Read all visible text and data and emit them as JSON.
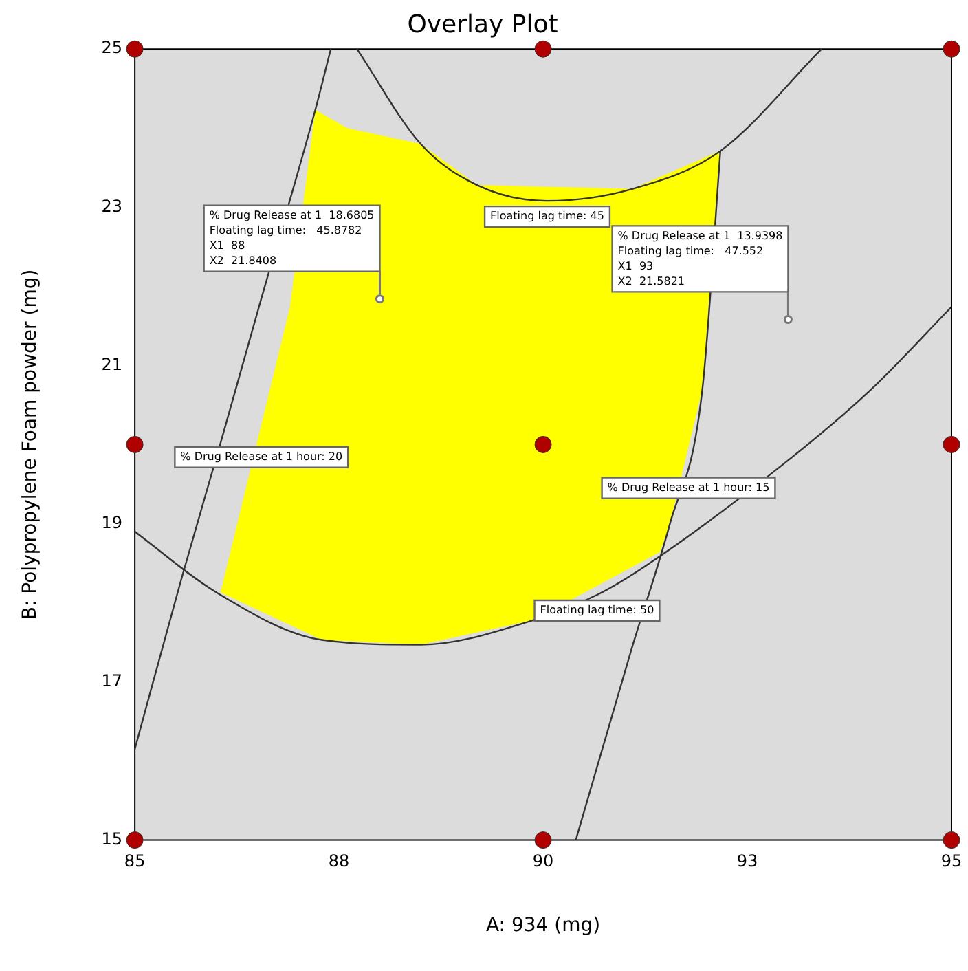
{
  "chart_data": {
    "type": "scatter",
    "title": "Overlay Plot",
    "xlabel": "A: 934 (mg)",
    "ylabel": "B: Polypropylene Foam powder (mg)",
    "xlim": [
      85,
      95
    ],
    "ylim": [
      15,
      25
    ],
    "xticks": [
      85,
      {
        "value": 87.5,
        "label": "88"
      },
      90,
      {
        "value": 92.5,
        "label": "93"
      },
      95
    ],
    "yticks": [
      15,
      17,
      19,
      21,
      23,
      25
    ],
    "grid": false,
    "legend": false,
    "series": [
      {
        "type": "area",
        "color": "#ffff00",
        "x": [
          86.05,
          86.9,
          87.21,
          87.6,
          88.5,
          89.19,
          91.09,
          92.17,
          91.95,
          91.55,
          91.43,
          89.88,
          88.5,
          87.29,
          86.05
        ],
        "values": [
          18.13,
          21.74,
          24.23,
          24.0,
          23.8,
          23.28,
          23.23,
          23.71,
          20.7,
          18.99,
          18.64,
          17.78,
          17.47,
          17.53,
          18.13
        ]
      },
      {
        "type": "line",
        "color": "#333333",
        "x": [
          85,
          85.57,
          86.05,
          86.52,
          87.21,
          87.4
        ],
        "values": [
          16.15,
          18.3,
          20.02,
          21.74,
          24.23,
          25
        ]
      },
      {
        "type": "line",
        "color": "#333333",
        "x": [
          90.4,
          91.09,
          91.55,
          91.95,
          92.17
        ],
        "values": [
          15,
          17.44,
          18.99,
          20.7,
          23.71
        ]
      },
      {
        "type": "line",
        "color": "#333333",
        "x": [
          87.72,
          88.5,
          89.19,
          90.05,
          91.09,
          92.17,
          93.41
        ],
        "values": [
          25,
          23.8,
          23.28,
          23.08,
          23.23,
          23.71,
          25
        ]
      },
      {
        "type": "line",
        "color": "#333333",
        "x": [
          85,
          86,
          87.29,
          88.5,
          89.88,
          90.66,
          91.26,
          93.0,
          94.02,
          95
        ],
        "values": [
          18.9,
          18.13,
          17.53,
          17.47,
          17.78,
          18.1,
          18.47,
          19.8,
          20.7,
          21.74
        ]
      },
      {
        "color": "#b00000",
        "marker": "circle",
        "x": [
          85,
          90,
          95,
          85,
          90,
          95,
          85,
          90,
          95
        ],
        "values": [
          15,
          15,
          15,
          20,
          20,
          20,
          25,
          25,
          25
        ]
      }
    ],
    "annotations": [
      {
        "text": "% Drug Release at 1 hour: 20",
        "x": 86.55,
        "y": 20.04
      },
      {
        "text": "% Drug Release at 1 hour: 15",
        "x": 91.78,
        "y": 19.65
      },
      {
        "text": "Floating lag time: 50",
        "x": 90.66,
        "y": 18.1
      },
      {
        "text": "Floating lag time: 45",
        "x": 90.05,
        "y": 23.08
      },
      {
        "text": "% Drug Release at 1  18.6805\nFloating lag time:   45.8782\nX1  88\nX2  21.8408",
        "x": 88,
        "y": 21.8408
      },
      {
        "text": "% Drug Release at 1  13.9398\nFloating lag time:   47.552\nX1  93\nX2  21.5821",
        "x": 93,
        "y": 21.5821
      }
    ]
  }
}
